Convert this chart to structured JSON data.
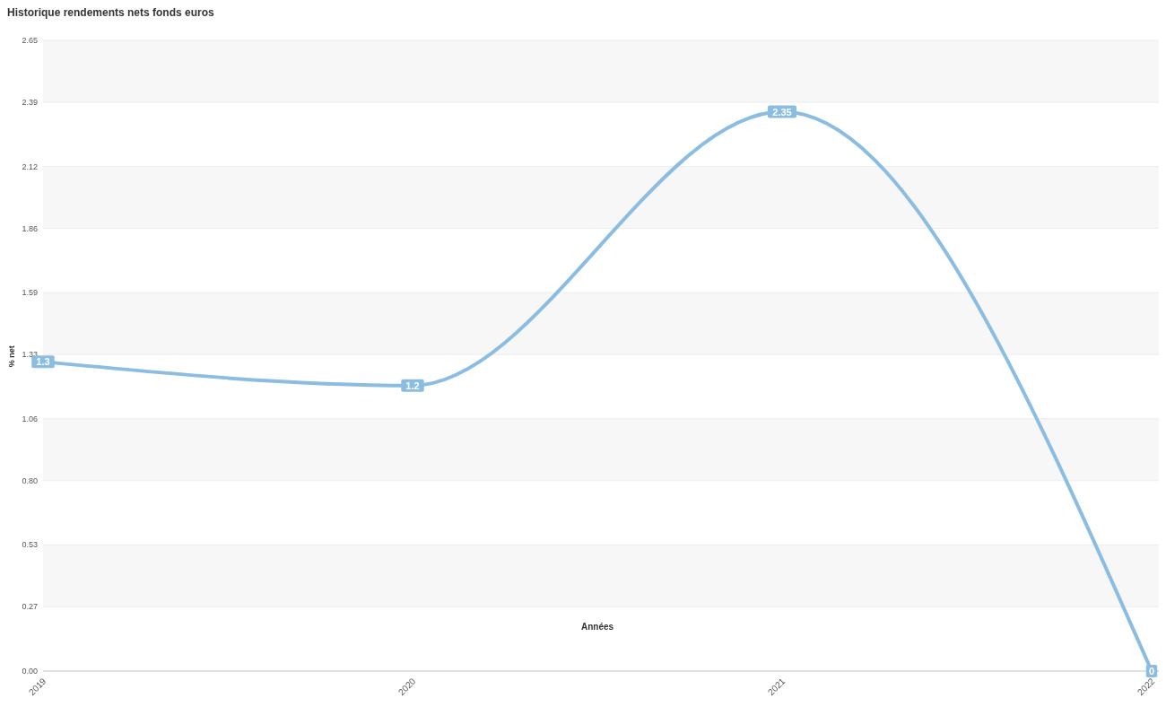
{
  "chart_data": {
    "type": "line",
    "title": "Historique rendements nets fonds euros",
    "xlabel": "Années",
    "ylabel": "% net",
    "categories": [
      "2019",
      "2020",
      "2021",
      "2022"
    ],
    "series": [
      {
        "color": "#8bbde3",
        "values": [
          1.3,
          1.2,
          2.35,
          0
        ]
      }
    ],
    "ylim": [
      0,
      2.65
    ],
    "yticks": [
      {
        "value": 0,
        "label": "0.00"
      },
      0.27,
      0.53,
      {
        "value": 0.8,
        "label": "0.80"
      },
      1.06,
      1.33,
      1.59,
      1.86,
      2.12,
      2.39,
      2.65
    ],
    "grid": "y",
    "data_labels": true,
    "marker": "square",
    "line_style": "solid"
  }
}
